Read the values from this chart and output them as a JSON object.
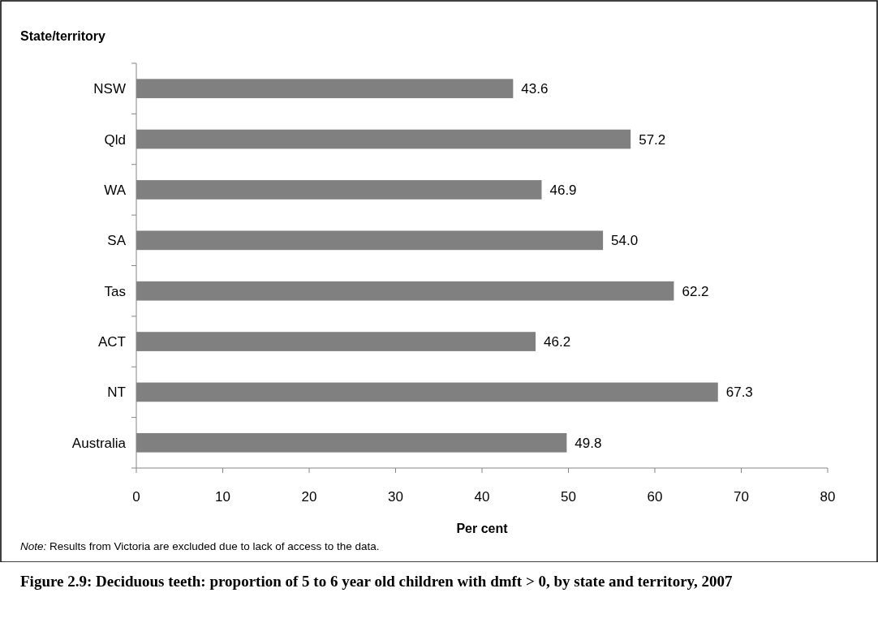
{
  "chart_data": {
    "type": "bar",
    "orientation": "horizontal",
    "title": "Figure 2.9: Deciduous teeth: proportion of 5 to 6 year old children with dmft > 0, by state and territory, 2007",
    "xlabel": "Per cent",
    "ylabel": "State/territory",
    "categories": [
      "NSW",
      "Qld",
      "WA",
      "SA",
      "Tas",
      "ACT",
      "NT",
      "Australia"
    ],
    "values": [
      43.6,
      57.2,
      46.9,
      54.0,
      62.2,
      46.2,
      67.3,
      49.8
    ],
    "value_labels": [
      "43.6",
      "57.2",
      "46.9",
      "54.0",
      "62.2",
      "46.2",
      "67.3",
      "49.8"
    ],
    "color": "#808080",
    "xlim": [
      0,
      80
    ],
    "xticks": [
      0,
      10,
      20,
      30,
      40,
      50,
      60,
      70,
      80
    ],
    "annotations": [
      "Note: Results from Victoria are excluded due to lack of access to the data."
    ]
  }
}
